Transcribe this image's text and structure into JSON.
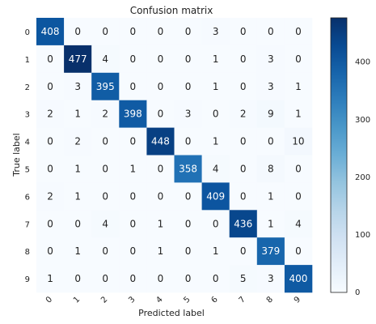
{
  "chart_data": {
    "type": "heatmap",
    "title": "Confusion matrix",
    "xlabel": "Predicted label",
    "ylabel": "True label",
    "x_categories": [
      "0",
      "1",
      "2",
      "3",
      "4",
      "5",
      "6",
      "7",
      "8",
      "9"
    ],
    "y_categories": [
      "0",
      "1",
      "2",
      "3",
      "4",
      "5",
      "6",
      "7",
      "8",
      "9"
    ],
    "matrix": [
      [
        408,
        0,
        0,
        0,
        0,
        0,
        3,
        0,
        0,
        0
      ],
      [
        0,
        477,
        4,
        0,
        0,
        0,
        1,
        0,
        3,
        0
      ],
      [
        0,
        3,
        395,
        0,
        0,
        0,
        1,
        0,
        3,
        1
      ],
      [
        2,
        1,
        2,
        398,
        0,
        3,
        0,
        2,
        9,
        1
      ],
      [
        0,
        2,
        0,
        0,
        448,
        0,
        1,
        0,
        0,
        10
      ],
      [
        0,
        1,
        0,
        1,
        0,
        358,
        4,
        0,
        8,
        0
      ],
      [
        2,
        1,
        0,
        0,
        0,
        0,
        409,
        0,
        1,
        0
      ],
      [
        0,
        0,
        4,
        0,
        1,
        0,
        0,
        436,
        1,
        4
      ],
      [
        0,
        1,
        0,
        0,
        1,
        0,
        1,
        0,
        379,
        0
      ],
      [
        1,
        0,
        0,
        0,
        0,
        0,
        0,
        5,
        3,
        400
      ]
    ],
    "colormap": "Blues",
    "color_range": [
      0,
      477
    ],
    "colorbar_ticks": [
      0,
      100,
      200,
      300,
      400
    ],
    "grid": false
  }
}
